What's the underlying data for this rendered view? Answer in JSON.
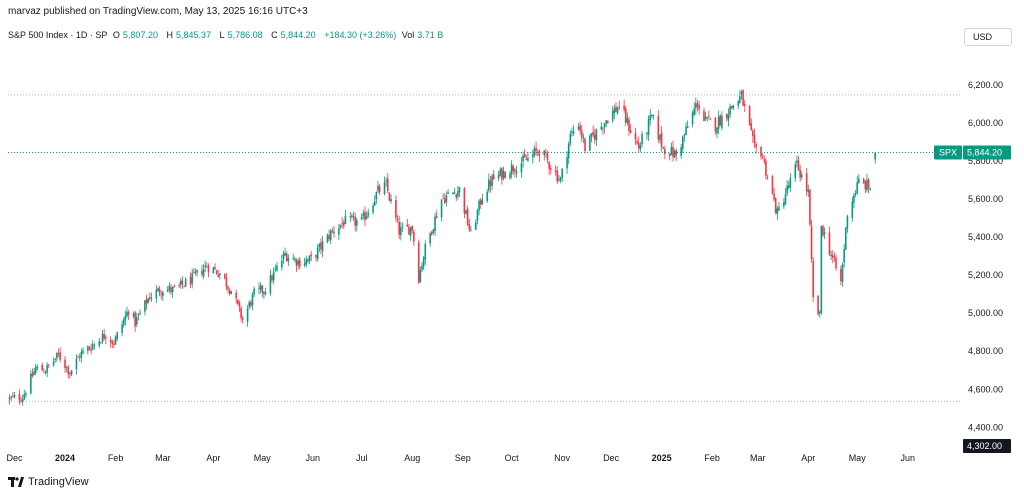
{
  "header": {
    "publish_line": "marvaz published on TradingView.com, May 13, 2025 16:16 UTC+3"
  },
  "legend": {
    "title": "S&P 500 Index · 1D · SP",
    "open_key": "O",
    "open": "5,807.20",
    "high_key": "H",
    "high": "5,845.37",
    "low_key": "L",
    "low": "5,786.08",
    "close_key": "C",
    "close": "5,844.20",
    "change": "+184.30 (+3.26%)",
    "vol_key": "Vol",
    "vol": "3.71 B"
  },
  "currency_button": "USD",
  "footer": {
    "brand": "TradingView"
  },
  "colors": {
    "up": "#089981",
    "down": "#f23645",
    "tag": "#089981",
    "dark": "#131722",
    "dotted": "#b2b5be"
  },
  "chart_data": {
    "type": "candlestick",
    "title": "S&P 500 Index · 1D · SP",
    "xlabel": "",
    "ylabel": "",
    "ylim": [
      4302,
      6320
    ],
    "xlim": [
      "2023-11-27",
      "2025-06-30"
    ],
    "x_ticks": [
      {
        "date": "2023-12-01",
        "label": "Dec"
      },
      {
        "date": "2024-01-01",
        "label": "2024"
      },
      {
        "date": "2024-02-01",
        "label": "Feb"
      },
      {
        "date": "2024-03-01",
        "label": "Mar"
      },
      {
        "date": "2024-04-01",
        "label": "Apr"
      },
      {
        "date": "2024-05-01",
        "label": "May"
      },
      {
        "date": "2024-06-01",
        "label": "Jun"
      },
      {
        "date": "2024-07-01",
        "label": "Jul"
      },
      {
        "date": "2024-08-01",
        "label": "Aug"
      },
      {
        "date": "2024-09-01",
        "label": "Sep"
      },
      {
        "date": "2024-10-01",
        "label": "Oct"
      },
      {
        "date": "2024-11-01",
        "label": "Nov"
      },
      {
        "date": "2024-12-01",
        "label": "Dec"
      },
      {
        "date": "2025-01-01",
        "label": "2025"
      },
      {
        "date": "2025-02-01",
        "label": "Feb"
      },
      {
        "date": "2025-03-01",
        "label": "Mar"
      },
      {
        "date": "2025-04-01",
        "label": "Apr"
      },
      {
        "date": "2025-05-01",
        "label": "May"
      },
      {
        "date": "2025-06-01",
        "label": "Jun"
      }
    ],
    "y_ticks": [
      {
        "value": 4400,
        "label": "4,400.00"
      },
      {
        "value": 4600,
        "label": "4,600.00"
      },
      {
        "value": 4800,
        "label": "4,800.00"
      },
      {
        "value": 5000,
        "label": "5,000.00"
      },
      {
        "value": 5200,
        "label": "5,200.00"
      },
      {
        "value": 5400,
        "label": "5,400.00"
      },
      {
        "value": 5600,
        "label": "5,600.00"
      },
      {
        "value": 5800,
        "label": "5,800.00"
      },
      {
        "value": 6000,
        "label": "6,000.00"
      },
      {
        "value": 6200,
        "label": "6,200.00"
      }
    ],
    "horizontal_levels": [
      {
        "value": 6147,
        "style": "dotted"
      },
      {
        "value": 4537,
        "style": "dotted"
      },
      {
        "value": 5844.2,
        "style": "dotted-green"
      }
    ],
    "price_tag": {
      "symbol": "SPX",
      "value": 5844.2,
      "label": "5,844.20"
    },
    "low_tag": {
      "value": 4302,
      "label": "4,302.00"
    },
    "series": [
      {
        "name": "SPX",
        "anchors": [
          {
            "date": "2023-11-28",
            "close": 4550
          },
          {
            "date": "2023-12-06",
            "close": 4560
          },
          {
            "date": "2023-12-14",
            "close": 4710
          },
          {
            "date": "2023-12-20",
            "close": 4700
          },
          {
            "date": "2023-12-28",
            "close": 4780
          },
          {
            "date": "2024-01-04",
            "close": 4690
          },
          {
            "date": "2024-01-10",
            "close": 4780
          },
          {
            "date": "2024-01-19",
            "close": 4840
          },
          {
            "date": "2024-01-26",
            "close": 4890
          },
          {
            "date": "2024-01-31",
            "close": 4845
          },
          {
            "date": "2024-02-09",
            "close": 5020
          },
          {
            "date": "2024-02-13",
            "close": 4950
          },
          {
            "date": "2024-02-22",
            "close": 5090
          },
          {
            "date": "2024-03-01",
            "close": 5130
          },
          {
            "date": "2024-03-08",
            "close": 5120
          },
          {
            "date": "2024-03-19",
            "close": 5180
          },
          {
            "date": "2024-03-28",
            "close": 5250
          },
          {
            "date": "2024-04-05",
            "close": 5210
          },
          {
            "date": "2024-04-12",
            "close": 5120
          },
          {
            "date": "2024-04-19",
            "close": 4965
          },
          {
            "date": "2024-04-26",
            "close": 5100
          },
          {
            "date": "2024-05-03",
            "close": 5130
          },
          {
            "date": "2024-05-15",
            "close": 5310
          },
          {
            "date": "2024-05-23",
            "close": 5270
          },
          {
            "date": "2024-05-31",
            "close": 5280
          },
          {
            "date": "2024-06-12",
            "close": 5420
          },
          {
            "date": "2024-06-20",
            "close": 5480
          },
          {
            "date": "2024-07-01",
            "close": 5480
          },
          {
            "date": "2024-07-11",
            "close": 5640
          },
          {
            "date": "2024-07-16",
            "close": 5670
          },
          {
            "date": "2024-07-24",
            "close": 5430
          },
          {
            "date": "2024-08-01",
            "close": 5450
          },
          {
            "date": "2024-08-05",
            "close": 5190
          },
          {
            "date": "2024-08-09",
            "close": 5340
          },
          {
            "date": "2024-08-19",
            "close": 5600
          },
          {
            "date": "2024-08-30",
            "close": 5650
          },
          {
            "date": "2024-09-06",
            "close": 5410
          },
          {
            "date": "2024-09-13",
            "close": 5620
          },
          {
            "date": "2024-09-19",
            "close": 5700
          },
          {
            "date": "2024-09-30",
            "close": 5760
          },
          {
            "date": "2024-10-11",
            "close": 5810
          },
          {
            "date": "2024-10-18",
            "close": 5860
          },
          {
            "date": "2024-10-31",
            "close": 5700
          },
          {
            "date": "2024-11-06",
            "close": 5930
          },
          {
            "date": "2024-11-11",
            "close": 6000
          },
          {
            "date": "2024-11-15",
            "close": 5870
          },
          {
            "date": "2024-11-29",
            "close": 6030
          },
          {
            "date": "2024-12-06",
            "close": 6090
          },
          {
            "date": "2024-12-18",
            "close": 5870
          },
          {
            "date": "2024-12-26",
            "close": 6030
          },
          {
            "date": "2025-01-02",
            "close": 5870
          },
          {
            "date": "2025-01-10",
            "close": 5830
          },
          {
            "date": "2025-01-23",
            "close": 6110
          },
          {
            "date": "2025-01-27",
            "close": 6010
          },
          {
            "date": "2025-02-03",
            "close": 5990
          },
          {
            "date": "2025-02-19",
            "close": 6140
          },
          {
            "date": "2025-02-27",
            "close": 5860
          },
          {
            "date": "2025-03-03",
            "close": 5850
          },
          {
            "date": "2025-03-13",
            "close": 5520
          },
          {
            "date": "2025-03-25",
            "close": 5780
          },
          {
            "date": "2025-04-01",
            "close": 5630
          },
          {
            "date": "2025-04-04",
            "close": 5070
          },
          {
            "date": "2025-04-08",
            "close": 4980
          },
          {
            "date": "2025-04-09",
            "close": 5460
          },
          {
            "date": "2025-04-21",
            "close": 5160
          },
          {
            "date": "2025-04-25",
            "close": 5530
          },
          {
            "date": "2025-05-02",
            "close": 5690
          },
          {
            "date": "2025-05-09",
            "close": 5660
          },
          {
            "date": "2025-05-12",
            "close": 5844.2
          }
        ],
        "last_candle": {
          "date": "2025-05-12",
          "open": 5807.2,
          "high": 5845.37,
          "low": 5786.08,
          "close": 5844.2
        }
      }
    ]
  }
}
